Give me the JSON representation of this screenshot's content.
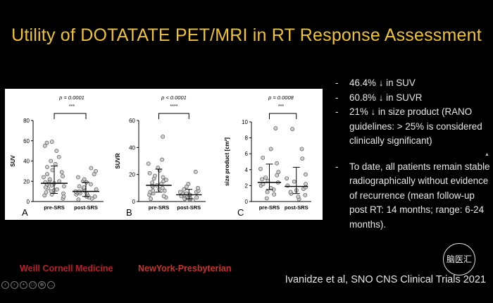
{
  "title": "Utility of DOTATATE PET/MRI in RT Response Assessment",
  "bullets": [
    {
      "dash": "-",
      "text": "46.4% ↓ in SUV"
    },
    {
      "dash": "-",
      "text": "60.8% ↓ in SUVR"
    },
    {
      "dash": "-",
      "text": "21% ↓ in size product (RANO guidelines: > 25% is considered clinically significant)"
    },
    {
      "dash": "-",
      "text": "To date, all patients remain stable radiographically without evidence of recurrence (mean follow-up post RT: 14 months; range: 6-24 months)."
    }
  ],
  "citation": "Ivanidze et al, SNO CNS Clinical Trials 2021",
  "logos": {
    "left": "Weill Cornell Medicine",
    "right": "NewYork-Presbyterian"
  },
  "watermark": "脑医汇",
  "colors": {
    "title": "#f0c330",
    "text": "#e8e8e8",
    "logo": "#b8202a"
  },
  "chart_data": [
    {
      "type": "scatter",
      "panel": "A",
      "categories": [
        "pre-SRS",
        "post-SRS"
      ],
      "ylabel": "SUV",
      "ylim": [
        0,
        80
      ],
      "yticks": [
        0,
        20,
        40,
        60,
        80
      ],
      "p_label": "p = 0.0001",
      "stars": "***",
      "series": [
        {
          "category": "pre-SRS",
          "median": 18,
          "q1": 8,
          "q3": 35,
          "points": [
            3,
            5,
            6,
            7,
            8,
            9,
            10,
            11,
            12,
            13,
            14,
            15,
            16,
            17,
            18,
            18,
            19,
            20,
            21,
            22,
            24,
            25,
            27,
            29,
            31,
            34,
            37,
            40,
            44,
            50,
            55,
            58,
            59
          ]
        },
        {
          "category": "post-SRS",
          "median": 10,
          "q1": 5,
          "q3": 19,
          "points": [
            2,
            3,
            4,
            5,
            5,
            6,
            7,
            8,
            8,
            9,
            10,
            10,
            11,
            12,
            13,
            14,
            15,
            17,
            19,
            20,
            22,
            24,
            27,
            30,
            33
          ]
        }
      ]
    },
    {
      "type": "scatter",
      "panel": "B",
      "categories": [
        "pre-SRS",
        "post-SRS"
      ],
      "ylabel": "SUVR",
      "ylim": [
        0,
        60
      ],
      "yticks": [
        0,
        20,
        40,
        60
      ],
      "p_label": "p < 0.0001",
      "stars": "****",
      "series": [
        {
          "category": "pre-SRS",
          "median": 12,
          "q1": 7,
          "q3": 24,
          "points": [
            2,
            3,
            4,
            5,
            6,
            7,
            8,
            8,
            9,
            10,
            11,
            12,
            12,
            13,
            14,
            15,
            16,
            17,
            18,
            19,
            21,
            23,
            25,
            28,
            31,
            48
          ]
        },
        {
          "category": "post-SRS",
          "median": 5,
          "q1": 2,
          "q3": 9,
          "points": [
            1,
            1,
            2,
            2,
            3,
            3,
            3,
            4,
            4,
            5,
            5,
            5,
            6,
            6,
            7,
            7,
            8,
            9,
            10,
            11,
            13,
            22
          ]
        }
      ]
    },
    {
      "type": "scatter",
      "panel": "C",
      "categories": [
        "pre-SRS",
        "post-SRS"
      ],
      "ylabel": "size product [cm²]",
      "ylim": [
        0,
        10
      ],
      "yticks": [
        0,
        2,
        4,
        6,
        8,
        10
      ],
      "p_label": "p = 0.0008",
      "stars": "***",
      "series": [
        {
          "category": "pre-SRS",
          "median": 2.4,
          "q1": 1.5,
          "q3": 4.7,
          "points": [
            0.4,
            0.9,
            1.2,
            1.5,
            1.7,
            2.0,
            2.2,
            2.4,
            2.6,
            2.8,
            3.0,
            3.3,
            3.7,
            4.1,
            4.8,
            5.5,
            6.6,
            9.2
          ]
        },
        {
          "category": "post-SRS",
          "median": 1.9,
          "q1": 1.0,
          "q3": 4.3,
          "points": [
            0.3,
            0.6,
            0.8,
            1.0,
            1.2,
            1.4,
            1.6,
            1.8,
            2.0,
            2.2,
            2.5,
            2.9,
            3.4,
            5.4,
            6.6,
            9.1
          ]
        }
      ]
    }
  ]
}
